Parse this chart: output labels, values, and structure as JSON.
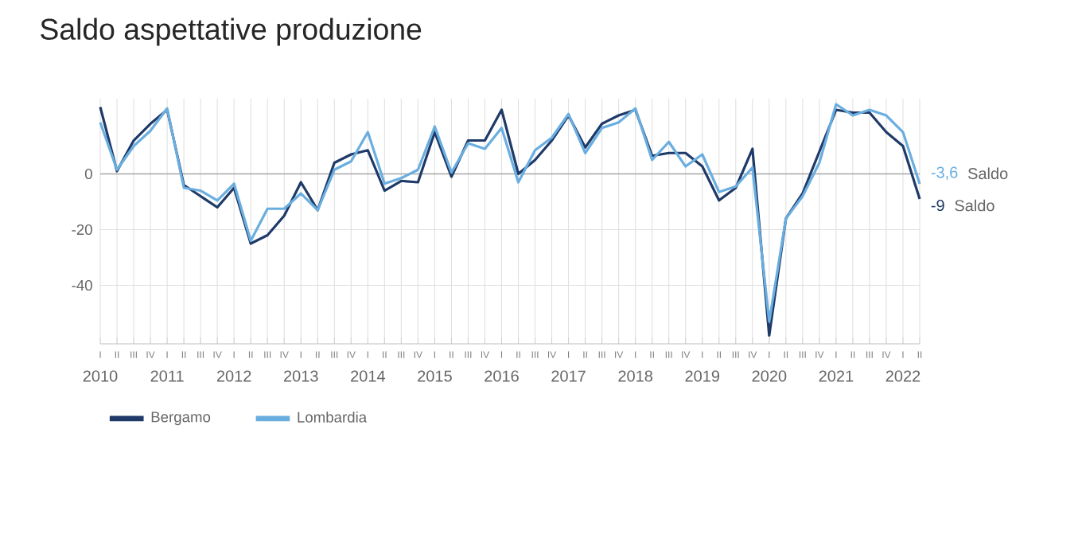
{
  "chart_data": {
    "type": "line",
    "title": "Saldo aspettative produzione",
    "categories": [
      "I",
      "II",
      "III",
      "IV",
      "I",
      "II",
      "III",
      "IV",
      "I",
      "II",
      "III",
      "IV",
      "I",
      "II",
      "III",
      "IV",
      "I",
      "II",
      "III",
      "IV",
      "I",
      "II",
      "III",
      "IV",
      "I",
      "II",
      "III",
      "IV",
      "I",
      "II",
      "III",
      "IV",
      "I",
      "II",
      "III",
      "IV",
      "I",
      "II",
      "III",
      "IV",
      "I",
      "II",
      "III",
      "IV",
      "I",
      "II",
      "III",
      "IV",
      "I",
      "II"
    ],
    "series": [
      {
        "name": "Bergamo",
        "color": "#1f3a68",
        "values": [
          24,
          1,
          12,
          18,
          23,
          -4,
          -8,
          -12,
          -5,
          -25,
          -22,
          -15,
          -3,
          -13,
          4,
          7,
          8.5,
          -6,
          -2.5,
          -3,
          15,
          -1,
          12,
          12,
          23,
          0,
          5,
          12,
          21,
          9.5,
          18,
          21,
          23,
          6.5,
          7.5,
          7.5,
          2.7,
          -9.5,
          -5,
          9,
          -58,
          -16,
          -7,
          8,
          23,
          22,
          22,
          15,
          10,
          -9
        ],
        "value_labels": [
          null,
          null,
          null,
          null,
          null,
          null,
          null,
          null,
          null,
          null,
          null,
          null,
          null,
          null,
          null,
          null,
          null,
          null,
          null,
          null,
          null,
          null,
          null,
          null,
          null,
          null,
          null,
          null,
          null,
          null,
          null,
          null,
          null,
          null,
          null,
          null,
          null,
          null,
          null,
          null,
          null,
          null,
          null,
          null,
          null,
          null,
          null,
          null,
          null,
          "-9"
        ]
      },
      {
        "name": "Lombardia",
        "color": "#6aaee0",
        "values": [
          18.5,
          1.5,
          10,
          15.5,
          23.5,
          -5,
          -6,
          -9.5,
          -3.5,
          -24,
          -12.5,
          -12.5,
          -7,
          -13,
          1.5,
          4.5,
          15,
          -3.5,
          -1.5,
          1.5,
          17,
          0.5,
          11,
          9,
          16.5,
          -3,
          8.5,
          13,
          21.5,
          7.5,
          16.5,
          18.5,
          23.5,
          5,
          11.5,
          2.7,
          7,
          -6.5,
          -4.5,
          2.3,
          -53,
          -16,
          -8,
          4,
          25,
          21,
          23,
          21,
          15,
          -3.6
        ],
        "value_labels": [
          null,
          null,
          null,
          null,
          null,
          null,
          null,
          null,
          null,
          null,
          null,
          null,
          null,
          null,
          null,
          null,
          null,
          null,
          null,
          null,
          null,
          null,
          null,
          null,
          null,
          null,
          null,
          null,
          null,
          null,
          null,
          null,
          null,
          null,
          null,
          null,
          null,
          null,
          null,
          null,
          null,
          null,
          null,
          null,
          null,
          null,
          null,
          null,
          null,
          "-3,6"
        ]
      }
    ],
    "ylim": [
      -61,
      27
    ],
    "yticks": [
      -40,
      -20,
      0
    ],
    "x2lim": [
      2010,
      2022.25
    ],
    "x2ticks": [
      2010,
      2011,
      2012,
      2013,
      2014,
      2015,
      2016,
      2017,
      2018,
      2019,
      2020,
      2021,
      2022
    ],
    "annotations": [
      "Saldo",
      "Saldo"
    ],
    "grid": true,
    "legend": "bottom",
    "marker": "none",
    "line_style": "solid"
  }
}
